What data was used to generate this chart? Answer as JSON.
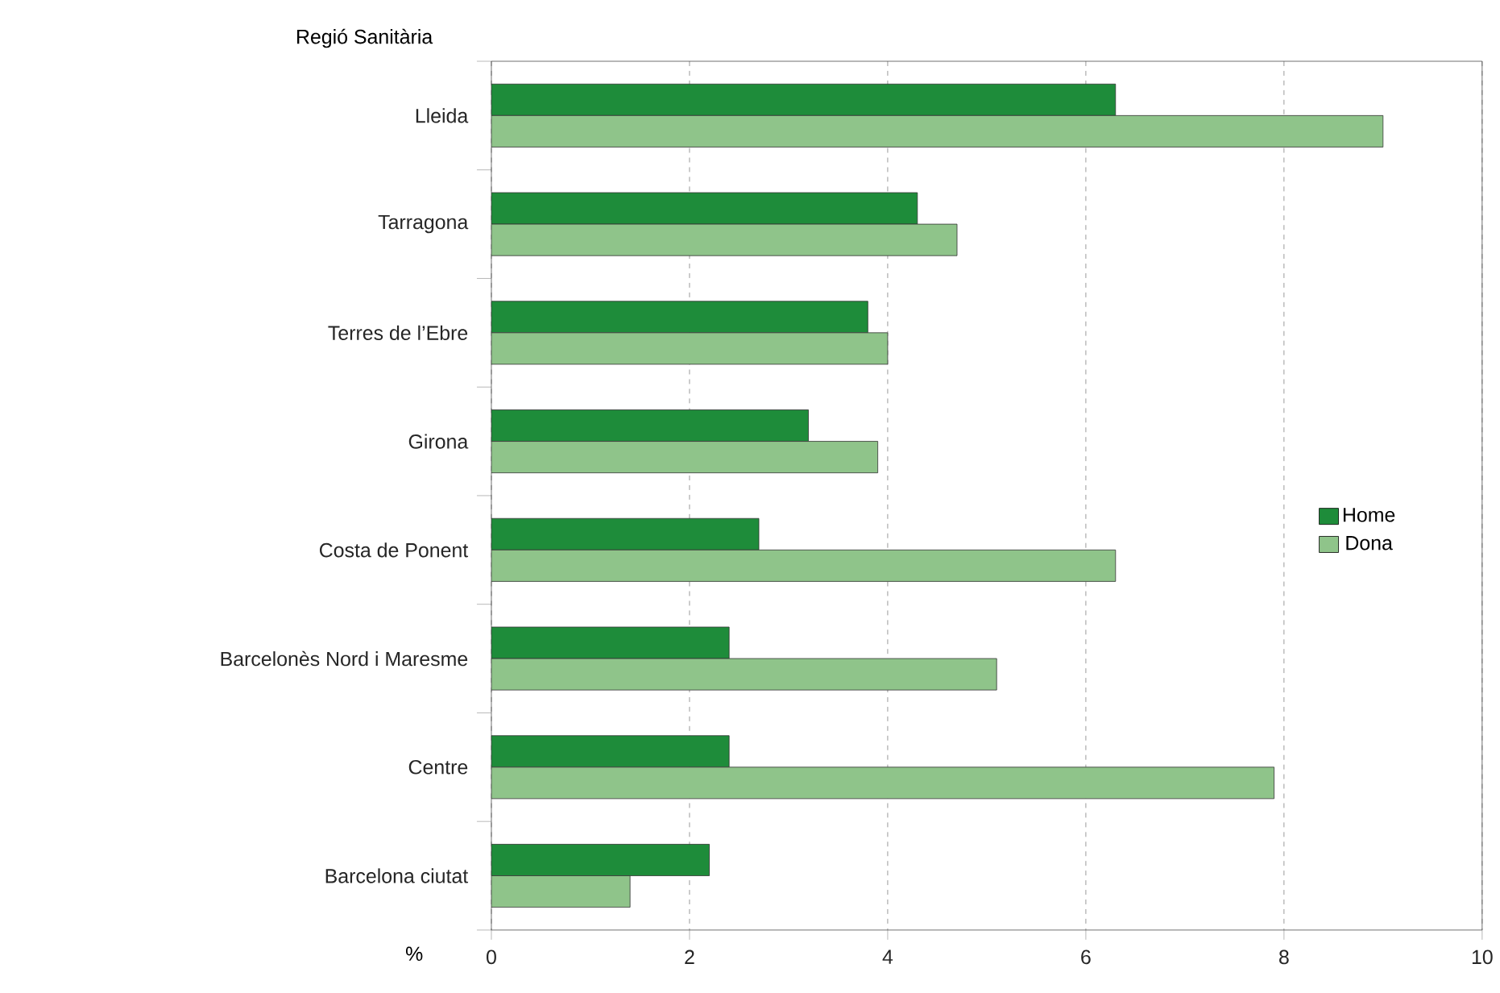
{
  "chart_data": {
    "type": "bar",
    "orientation": "horizontal",
    "ylabel": "Regió Sanitària",
    "xlabel": "%",
    "categories": [
      "Lleida",
      "Tarragona",
      "Terres de l’Ebre",
      "Girona",
      "Costa de Ponent",
      "Barcelonès Nord i Maresme",
      "Centre",
      "Barcelona ciutat"
    ],
    "series": [
      {
        "name": "Home",
        "color": "#1e8c3a",
        "values": [
          6.3,
          4.3,
          3.8,
          3.2,
          2.7,
          2.4,
          2.4,
          2.2
        ]
      },
      {
        "name": "Dona",
        "color": "#8fc48a",
        "values": [
          9.0,
          4.7,
          4.0,
          3.9,
          6.3,
          5.1,
          7.9,
          1.4
        ]
      }
    ],
    "xlim": [
      0,
      10
    ],
    "xticks": [
      0,
      2,
      4,
      6,
      8,
      10
    ],
    "grid": "x",
    "legend": "right"
  }
}
